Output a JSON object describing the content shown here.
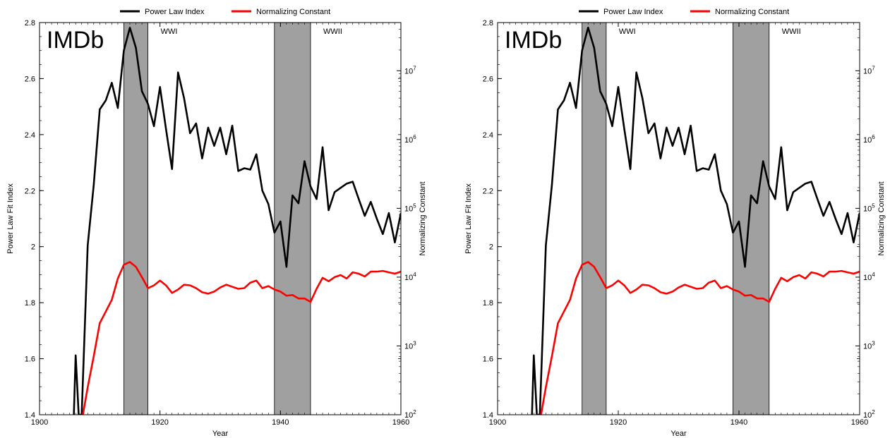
{
  "chart_data": [
    {
      "type": "line",
      "panel_label": "IMDb",
      "xlabel": "Year",
      "ylabel": "Power Law Fit Index",
      "y2label": "Normalizing Constant",
      "xlim": [
        1900,
        1960
      ],
      "ylim": [
        1.4,
        2.8
      ],
      "y2lim_log10": [
        2,
        7.7
      ],
      "x_ticks": [
        "1900",
        "1920",
        "1940",
        "1960"
      ],
      "y_ticks": [
        "1.4",
        "1.6",
        "1.8",
        "2",
        "2.2",
        "2.4",
        "2.6",
        "2.8"
      ],
      "y2_ticks": [
        {
          "base": "10",
          "exp": "2",
          "log": 2
        },
        {
          "base": "10",
          "exp": "3",
          "log": 3
        },
        {
          "base": "10",
          "exp": "4",
          "log": 4
        },
        {
          "base": "10",
          "exp": "5",
          "log": 5
        },
        {
          "base": "10",
          "exp": "6",
          "log": 6
        },
        {
          "base": "10",
          "exp": "7",
          "log": 7
        }
      ],
      "legend": {
        "placement": "top",
        "entries": [
          {
            "name": "Power Law Index",
            "color": "#000000"
          },
          {
            "name": "Normalizing Constant",
            "color": "#ff0000"
          }
        ]
      },
      "shaded_regions": [
        {
          "label": "WWI",
          "x0": 1914,
          "x1": 1918,
          "color": "#a0a0a0"
        },
        {
          "label": "WWII",
          "x0": 1939,
          "x1": 1945,
          "color": "#a0a0a0"
        }
      ],
      "series": [
        {
          "name": "Power Law Index",
          "axis": "left",
          "color": "#000000",
          "x": [
            1905.7,
            1906,
            1906.5,
            1907,
            1908,
            1909,
            1910,
            1911,
            1912,
            1913,
            1914,
            1915,
            1916,
            1917,
            1918,
            1919,
            1920,
            1921,
            1922,
            1923,
            1924,
            1925,
            1926,
            1927,
            1928,
            1929,
            1930,
            1931,
            1932,
            1933,
            1934,
            1935,
            1936,
            1937,
            1938,
            1939,
            1940,
            1941,
            1942,
            1943,
            1944,
            1945,
            1946,
            1947,
            1948,
            1949,
            1950,
            1951,
            1952,
            1953,
            1954,
            1955,
            1956,
            1957,
            1958,
            1959,
            1960
          ],
          "y": [
            1.4,
            1.612,
            1.4,
            1.4,
            2.005,
            2.22,
            2.49,
            2.522,
            2.585,
            2.495,
            2.7,
            2.782,
            2.71,
            2.555,
            2.51,
            2.43,
            2.57,
            2.42,
            2.277,
            2.622,
            2.53,
            2.405,
            2.44,
            2.315,
            2.425,
            2.36,
            2.425,
            2.33,
            2.432,
            2.27,
            2.28,
            2.275,
            2.33,
            2.2,
            2.152,
            2.05,
            2.09,
            1.928,
            2.183,
            2.155,
            2.305,
            2.215,
            2.17,
            2.355,
            2.13,
            2.195,
            2.21,
            2.225,
            2.232,
            2.17,
            2.11,
            2.16,
            2.1,
            2.045,
            2.12,
            2.015,
            2.12
          ]
        },
        {
          "name": "Normalizing Constant",
          "axis": "right",
          "color": "#ff0000",
          "x": [
            1907.2,
            1908,
            1909,
            1910,
            1911,
            1912,
            1913,
            1914,
            1915,
            1916,
            1917,
            1918,
            1919,
            1920,
            1921,
            1922,
            1923,
            1924,
            1925,
            1926,
            1927,
            1928,
            1929,
            1930,
            1931,
            1932,
            1933,
            1934,
            1935,
            1936,
            1937,
            1938,
            1939,
            1940,
            1941,
            1942,
            1943,
            1944,
            1945,
            1946,
            1947,
            1948,
            1949,
            1950,
            1951,
            1952,
            1953,
            1954,
            1955,
            1956,
            1957,
            1958,
            1959,
            1960
          ],
          "y_log10": [
            2.0,
            2.4,
            2.85,
            3.33,
            3.5,
            3.67,
            3.98,
            4.18,
            4.22,
            4.15,
            4.0,
            3.84,
            3.88,
            3.95,
            3.88,
            3.77,
            3.82,
            3.89,
            3.88,
            3.84,
            3.78,
            3.76,
            3.79,
            3.85,
            3.89,
            3.86,
            3.83,
            3.84,
            3.92,
            3.95,
            3.84,
            3.87,
            3.82,
            3.79,
            3.73,
            3.74,
            3.69,
            3.69,
            3.64,
            3.83,
            3.99,
            3.94,
            4.0,
            4.03,
            3.98,
            4.07,
            4.05,
            4.01,
            4.08,
            4.08,
            4.09,
            4.07,
            4.05,
            4.08
          ]
        }
      ]
    },
    {
      "type": "line",
      "panel_label": "IMDb",
      "xlabel": "Year",
      "ylabel": "Power Law Fit Index",
      "y2label": "Normalizing Constant",
      "xlim": [
        1900,
        1960
      ],
      "ylim": [
        1.4,
        2.8
      ],
      "y2lim_log10": [
        2,
        7.7
      ],
      "x_ticks": [
        "1900",
        "1920",
        "1940",
        "1960"
      ],
      "y_ticks": [
        "1.4",
        "1.6",
        "1.8",
        "2",
        "2.2",
        "2.4",
        "2.6",
        "2.8"
      ],
      "y2_ticks": [
        {
          "base": "10",
          "exp": "2",
          "log": 2
        },
        {
          "base": "10",
          "exp": "3",
          "log": 3
        },
        {
          "base": "10",
          "exp": "4",
          "log": 4
        },
        {
          "base": "10",
          "exp": "5",
          "log": 5
        },
        {
          "base": "10",
          "exp": "6",
          "log": 6
        },
        {
          "base": "10",
          "exp": "7",
          "log": 7
        }
      ],
      "legend": {
        "placement": "top",
        "entries": [
          {
            "name": "Power Law Index",
            "color": "#000000"
          },
          {
            "name": "Normalizing Constant",
            "color": "#ff0000"
          }
        ]
      },
      "shaded_regions": [
        {
          "label": "WWI",
          "x0": 1914,
          "x1": 1918,
          "color": "#a0a0a0"
        },
        {
          "label": "WWII",
          "x0": 1939,
          "x1": 1945,
          "color": "#a0a0a0"
        }
      ],
      "series": [
        {
          "name": "Power Law Index",
          "axis": "left",
          "color": "#000000",
          "x": [
            1905.7,
            1906,
            1906.5,
            1907,
            1908,
            1909,
            1910,
            1911,
            1912,
            1913,
            1914,
            1915,
            1916,
            1917,
            1918,
            1919,
            1920,
            1921,
            1922,
            1923,
            1924,
            1925,
            1926,
            1927,
            1928,
            1929,
            1930,
            1931,
            1932,
            1933,
            1934,
            1935,
            1936,
            1937,
            1938,
            1939,
            1940,
            1941,
            1942,
            1943,
            1944,
            1945,
            1946,
            1947,
            1948,
            1949,
            1950,
            1951,
            1952,
            1953,
            1954,
            1955,
            1956,
            1957,
            1958,
            1959,
            1960
          ],
          "y": [
            1.4,
            1.612,
            1.4,
            1.4,
            2.005,
            2.22,
            2.49,
            2.522,
            2.585,
            2.495,
            2.7,
            2.782,
            2.71,
            2.555,
            2.51,
            2.43,
            2.57,
            2.42,
            2.277,
            2.622,
            2.53,
            2.405,
            2.44,
            2.315,
            2.425,
            2.36,
            2.425,
            2.33,
            2.432,
            2.27,
            2.28,
            2.275,
            2.33,
            2.2,
            2.152,
            2.05,
            2.09,
            1.928,
            2.183,
            2.155,
            2.305,
            2.215,
            2.17,
            2.355,
            2.13,
            2.195,
            2.21,
            2.225,
            2.232,
            2.17,
            2.11,
            2.16,
            2.1,
            2.045,
            2.12,
            2.015,
            2.12
          ]
        },
        {
          "name": "Normalizing Constant",
          "axis": "right",
          "color": "#ff0000",
          "x": [
            1907.2,
            1908,
            1909,
            1910,
            1911,
            1912,
            1913,
            1914,
            1915,
            1916,
            1917,
            1918,
            1919,
            1920,
            1921,
            1922,
            1923,
            1924,
            1925,
            1926,
            1927,
            1928,
            1929,
            1930,
            1931,
            1932,
            1933,
            1934,
            1935,
            1936,
            1937,
            1938,
            1939,
            1940,
            1941,
            1942,
            1943,
            1944,
            1945,
            1946,
            1947,
            1948,
            1949,
            1950,
            1951,
            1952,
            1953,
            1954,
            1955,
            1956,
            1957,
            1958,
            1959,
            1960
          ],
          "y_log10": [
            2.0,
            2.4,
            2.85,
            3.33,
            3.5,
            3.67,
            3.98,
            4.18,
            4.22,
            4.15,
            4.0,
            3.84,
            3.88,
            3.95,
            3.88,
            3.77,
            3.82,
            3.89,
            3.88,
            3.84,
            3.78,
            3.76,
            3.79,
            3.85,
            3.89,
            3.86,
            3.83,
            3.84,
            3.92,
            3.95,
            3.84,
            3.87,
            3.82,
            3.79,
            3.73,
            3.74,
            3.69,
            3.69,
            3.64,
            3.83,
            3.99,
            3.94,
            4.0,
            4.03,
            3.98,
            4.07,
            4.05,
            4.01,
            4.08,
            4.08,
            4.09,
            4.07,
            4.05,
            4.08
          ]
        }
      ]
    }
  ]
}
